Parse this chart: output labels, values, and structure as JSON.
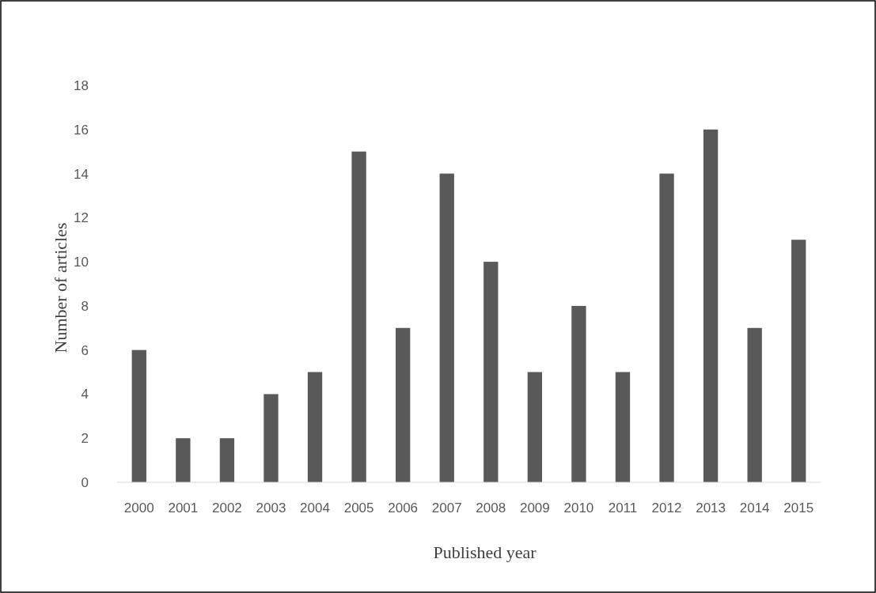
{
  "chart_data": {
    "type": "bar",
    "xlabel": "Published year",
    "ylabel": "Number of articles",
    "categories": [
      "2000",
      "2001",
      "2002",
      "2003",
      "2004",
      "2005",
      "2006",
      "2007",
      "2008",
      "2009",
      "2010",
      "2011",
      "2012",
      "2013",
      "2014",
      "2015"
    ],
    "values": [
      6,
      2,
      2,
      4,
      5,
      15,
      7,
      14,
      10,
      5,
      8,
      5,
      14,
      16,
      7,
      11
    ],
    "color": "#595959",
    "ylim": [
      0,
      18
    ],
    "yticks": [
      0,
      2,
      4,
      6,
      8,
      10,
      12,
      14,
      16,
      18
    ],
    "grid": false
  }
}
